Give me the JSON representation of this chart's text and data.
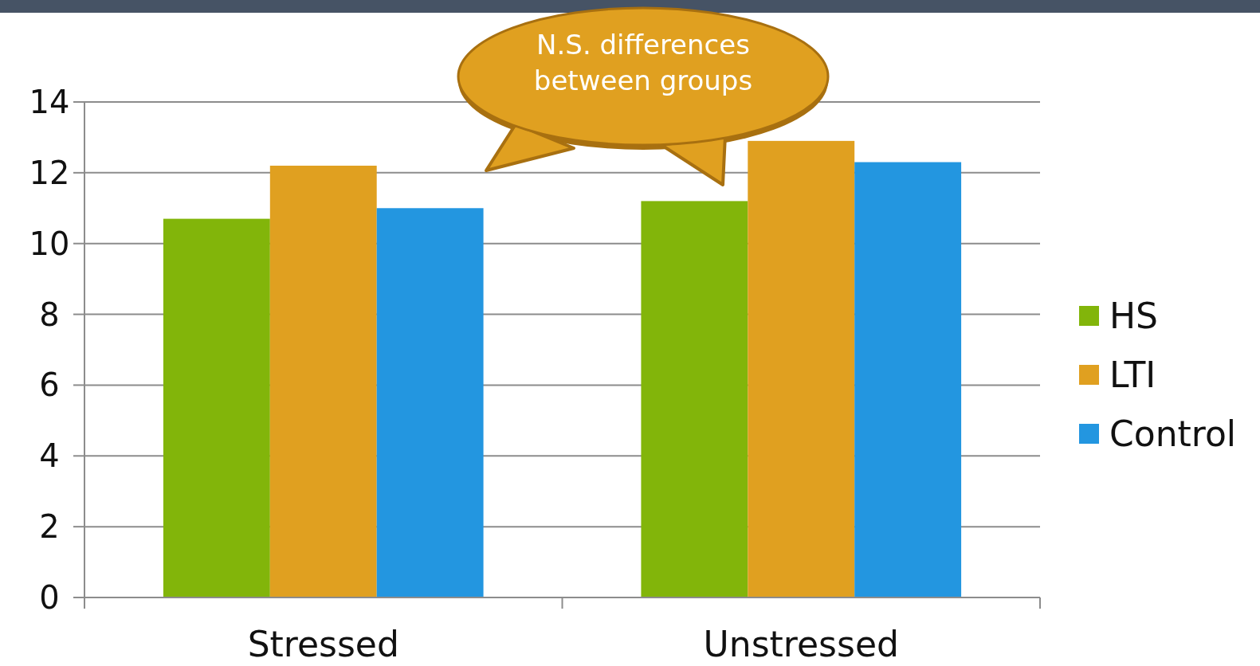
{
  "chart_data": {
    "type": "bar",
    "categories": [
      "Stressed",
      "Unstressed"
    ],
    "series": [
      {
        "name": "HS",
        "color": "#82b50a",
        "values": [
          10.7,
          11.2
        ]
      },
      {
        "name": "LTI",
        "color": "#e0a020",
        "values": [
          12.2,
          12.9
        ]
      },
      {
        "name": "Control",
        "color": "#2396e0",
        "values": [
          11.0,
          12.3
        ]
      }
    ],
    "ylim": [
      0,
      14
    ],
    "yticks": [
      0,
      2,
      4,
      6,
      8,
      10,
      12,
      14
    ],
    "grid": "y",
    "legend": "right",
    "annotations": [
      "N.S. differences between groups"
    ]
  }
}
